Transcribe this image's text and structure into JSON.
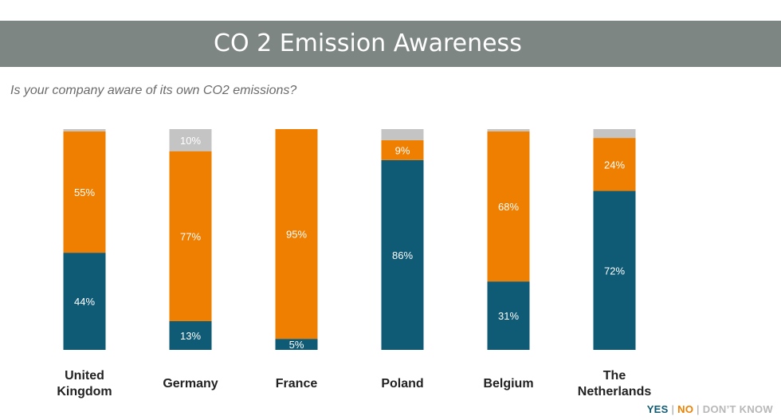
{
  "header": {
    "title": "CO 2 Emission Awareness"
  },
  "question": "Is your company aware of its own CO2 emissions?",
  "legend": {
    "yes": "YES",
    "no": "NO",
    "dont_know": "DON’T KNOW",
    "separator": "|"
  },
  "colors": {
    "yes": "#0f5a74",
    "no": "#ef7f00",
    "dont_know": "#c4c4c4",
    "title_bar": "#7d8683"
  },
  "chart_data": {
    "type": "bar",
    "stacked": true,
    "categories": [
      [
        "United",
        "Kingdom"
      ],
      [
        "Germany"
      ],
      [
        "France"
      ],
      [
        "Poland"
      ],
      [
        "Belgium"
      ],
      [
        "The",
        "Netherlands"
      ]
    ],
    "series": [
      {
        "name": "YES",
        "values": [
          44,
          13,
          5,
          86,
          31,
          72
        ],
        "labels": [
          "44%",
          "13%",
          "5%",
          "86%",
          "31%",
          "72%"
        ]
      },
      {
        "name": "NO",
        "values": [
          55,
          77,
          95,
          9,
          68,
          24
        ],
        "labels": [
          "55%",
          "77%",
          "95%",
          "9%",
          "68%",
          "24%"
        ]
      },
      {
        "name": "DON’T KNOW",
        "values": [
          1,
          10,
          0,
          5,
          1,
          4
        ],
        "labels": [
          "",
          "10%",
          "",
          "",
          "",
          ""
        ]
      }
    ],
    "ylim": [
      0,
      100
    ],
    "grid": false,
    "legend_position": "bottom-right"
  }
}
